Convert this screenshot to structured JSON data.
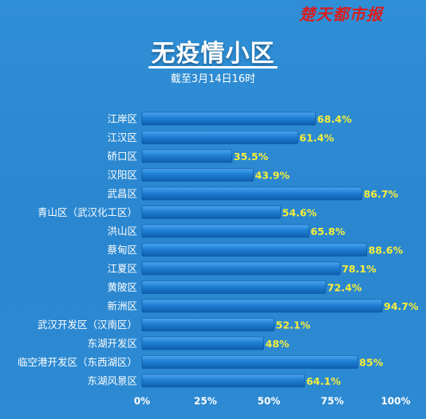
{
  "brand": "楚天都市报",
  "header": {
    "title": "无疫情小区",
    "subtitle": "截至3月14日16时"
  },
  "colors": {
    "background": "#2a86cf",
    "bar": "#1f7fd3",
    "value_label": "#f6ee3a",
    "category_label": "#ffffff",
    "brand": "#d81e1e"
  },
  "chart_data": {
    "type": "bar",
    "orientation": "horizontal",
    "categories": [
      "江岸区",
      "江汉区",
      "硚口区",
      "汉阳区",
      "武昌区",
      "青山区（武汉化工区）",
      "洪山区",
      "蔡甸区",
      "江夏区",
      "黄陂区",
      "新洲区",
      "武汉开发区（汉南区）",
      "东湖开发区",
      "临空港开发区（东西湖区）",
      "东湖风景区"
    ],
    "values": [
      68.4,
      61.4,
      35.5,
      43.9,
      86.7,
      54.6,
      65.8,
      88.6,
      78.1,
      72.4,
      94.7,
      52.1,
      48,
      85,
      64.1
    ],
    "value_labels": [
      "68.4%",
      "61.4%",
      "35.5%",
      "43.9%",
      "86.7%",
      "54.6%",
      "65.8%",
      "88.6%",
      "78.1%",
      "72.4%",
      "94.7%",
      "52.1%",
      "48%",
      "85%",
      "64.1%"
    ],
    "x_ticks": [
      0,
      25,
      50,
      75,
      100
    ],
    "x_tick_labels": [
      "0%",
      "25%",
      "50%",
      "75%",
      "100%"
    ],
    "xlim": [
      0,
      100
    ],
    "grid": false,
    "title": "无疫情小区",
    "subtitle": "截至3月14日16时"
  }
}
